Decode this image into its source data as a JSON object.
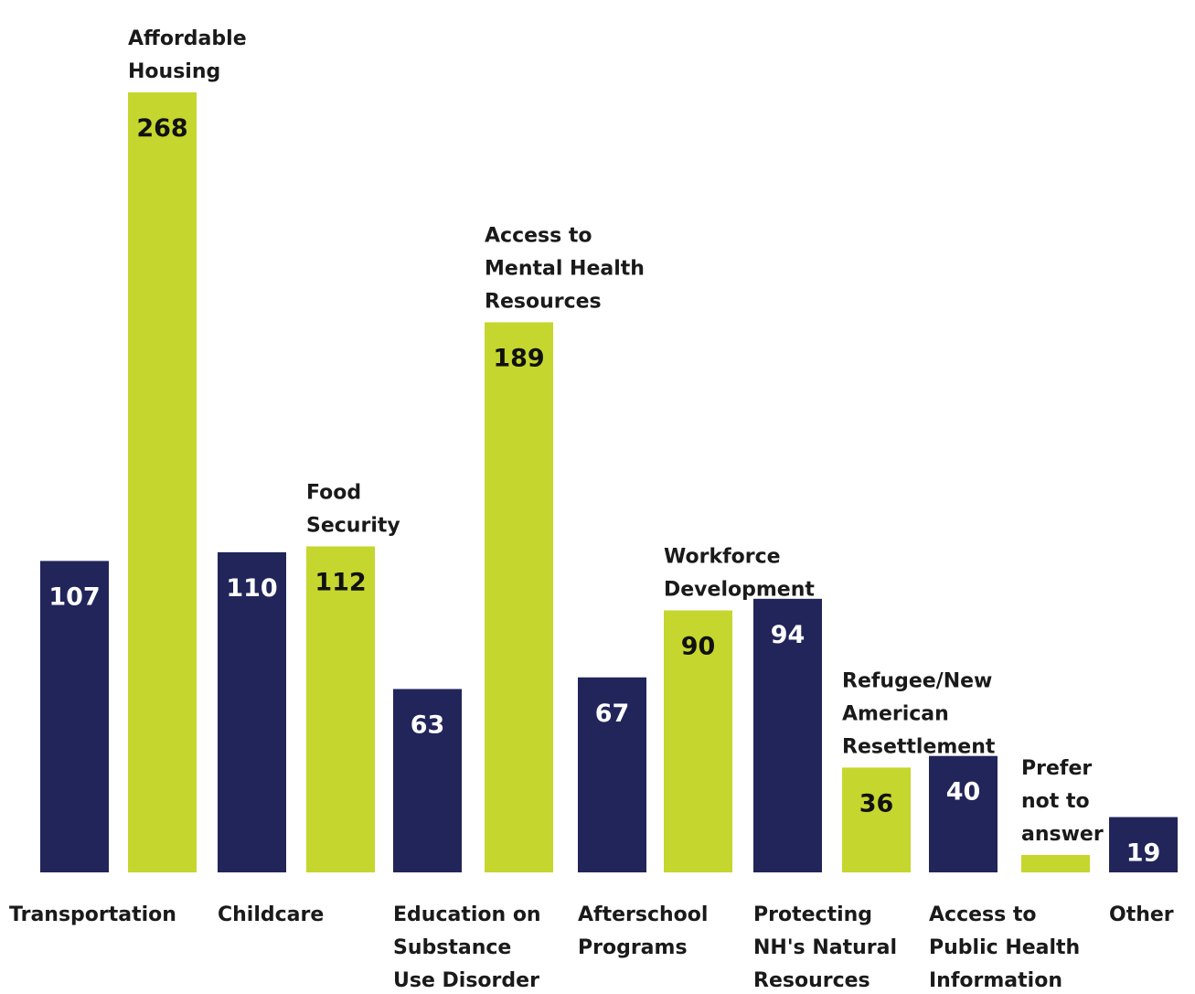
{
  "chart_data": {
    "type": "bar",
    "title": "",
    "xlabel": "",
    "ylabel": "",
    "ylim": [
      0,
      268
    ],
    "grid": false,
    "legend": "none",
    "colors": {
      "navy": "#22255a",
      "lime": "#c5d62e",
      "label_on_navy": "#ffffff",
      "label_on_lime": "#111111"
    },
    "categories": [
      "Transportation",
      "Affordable Housing",
      "Childcare",
      "Food Security",
      "Education on Substance Use Disorder",
      "Access to Mental Health Resources",
      "Afterschool Programs",
      "Workforce Development",
      "Protecting NH's Natural Resources",
      "Refugee/New American Resettlement",
      "Access to Public Health Information",
      "Prefer not to answer",
      "Other"
    ],
    "values": [
      107,
      268,
      110,
      112,
      63,
      189,
      67,
      90,
      94,
      36,
      40,
      6,
      19
    ],
    "value_labels": [
      "107",
      "268",
      "110",
      "112",
      "63",
      "189",
      "67",
      "90",
      "94",
      "36",
      "40",
      "",
      "19"
    ],
    "bar_colors": [
      "navy",
      "lime",
      "navy",
      "lime",
      "navy",
      "lime",
      "navy",
      "lime",
      "navy",
      "lime",
      "navy",
      "lime",
      "navy"
    ],
    "label_lines": [
      [
        "Transportation"
      ],
      [
        "Affordable",
        "Housing"
      ],
      [
        "Childcare"
      ],
      [
        "Food",
        "Security"
      ],
      [
        "Education on",
        "Substance",
        "Use Disorder"
      ],
      [
        "Access to",
        "Mental Health",
        "Resources"
      ],
      [
        "Afterschool",
        "Programs"
      ],
      [
        "Workforce",
        "Development"
      ],
      [
        "Protecting",
        "NH's Natural",
        "Resources"
      ],
      [
        "Refugee/New",
        "American",
        "Resettlement"
      ],
      [
        "Access to",
        "Public Health",
        "Information"
      ],
      [
        "Prefer",
        "not to",
        "answer"
      ],
      [
        "Other"
      ]
    ],
    "label_positions": [
      "below",
      "above",
      "below",
      "above",
      "below",
      "above",
      "below",
      "above",
      "below",
      "above",
      "below",
      "above",
      "below"
    ]
  }
}
